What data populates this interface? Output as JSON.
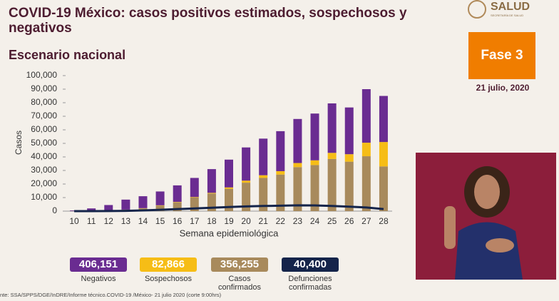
{
  "header": {
    "title": "COVID-19 México: casos positivos estimados, sospechosos y negativos",
    "subtitle": "Escenario nacional",
    "logo": "SALUD",
    "logo_sub": "SECRETARÍA DE SALUD",
    "phase": "Fase 3",
    "date": "21 julio, 2020"
  },
  "source": "nte: SSA/SPPS/DGE/InDRE/Informe técnico.COVID-19 /México- 21 julio 2020 (corte 9:00hrs)",
  "chart_data": {
    "type": "bar",
    "stacked": true,
    "ylabel": "Casos",
    "xlabel": "Semana epidemiológica",
    "categories": [
      "10",
      "11",
      "12",
      "13",
      "14",
      "15",
      "16",
      "17",
      "18",
      "19",
      "20",
      "21",
      "22",
      "23",
      "24",
      "25",
      "26",
      "27",
      "28"
    ],
    "ylim": [
      0,
      100000
    ],
    "yticks": [
      0,
      {
        "value": 10000,
        "label": "10,000"
      },
      {
        "value": 20000,
        "label": "20,000"
      },
      {
        "value": 30000,
        "label": "30,000"
      },
      {
        "value": 40000,
        "label": "40,000"
      },
      {
        "value": 50000,
        "label": "50,000"
      },
      {
        "value": 60000,
        "label": "60,000"
      },
      {
        "value": 70000,
        "label": "70,000"
      },
      {
        "value": 80000,
        "label": "80,000"
      },
      {
        "value": 90000,
        "label": "90,000"
      },
      {
        "value": 100000,
        "label": "100,000"
      }
    ],
    "series": [
      {
        "name": "Negativos",
        "color": "#6a2c91",
        "total": {
          "value": 406151,
          "label": "406,151"
        },
        "values": [
          400,
          1800,
          4000,
          7400,
          8800,
          10200,
          12200,
          14100,
          17500,
          20500,
          24500,
          27000,
          29500,
          32500,
          34500,
          36500,
          34500,
          39500,
          34000
        ]
      },
      {
        "name": "Sospechosos",
        "color": "#f6bd16",
        "total": {
          "value": 82866,
          "label": "82,866"
        },
        "values": [
          0,
          0,
          0,
          100,
          200,
          300,
          300,
          400,
          500,
          1000,
          1500,
          2000,
          2500,
          3000,
          3500,
          4500,
          5500,
          10000,
          18000
        ]
      },
      {
        "name": "Casos confirmados",
        "color": "#a88a5c",
        "total": {
          "value": 356255,
          "label": "356,255"
        },
        "values": [
          100,
          200,
          500,
          1000,
          2000,
          4000,
          6500,
          10000,
          13000,
          16500,
          21000,
          24500,
          27000,
          32500,
          34000,
          38500,
          36500,
          40500,
          33000
        ]
      },
      {
        "name": "Defunciones confirmadas",
        "color": "#14244a",
        "type": "line",
        "total": {
          "value": 40400,
          "label": "40,400"
        },
        "values": [
          0,
          10,
          50,
          200,
          500,
          1000,
          1500,
          2000,
          2500,
          3000,
          3500,
          3800,
          4000,
          4300,
          4200,
          3800,
          3300,
          2700,
          1500
        ]
      }
    ]
  }
}
